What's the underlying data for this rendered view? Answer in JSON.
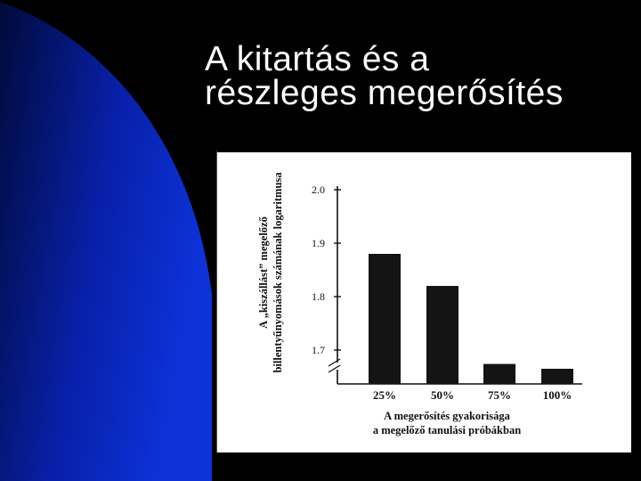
{
  "title": {
    "line1": "A kitartás és a",
    "line2": "részleges megerősítés"
  },
  "colors": {
    "background": "#000000",
    "accent_blue": "#0a28c8",
    "bar": "#141414"
  },
  "chart_data": {
    "type": "bar",
    "categories": [
      "25%",
      "50%",
      "75%",
      "100%"
    ],
    "values": [
      1.88,
      1.82,
      1.674,
      1.665
    ],
    "ylim": [
      1.65,
      2.0
    ],
    "yticks": [
      "2.0",
      "1.9",
      "1.8",
      "1.7"
    ],
    "ytick_values": [
      2.0,
      1.9,
      1.8,
      1.7
    ],
    "ylabel_line1": "A „kiszállást” megelőző",
    "ylabel_line2": "billentyűnyomások számának logaritmusa",
    "xlabel_line1": "A megerősítés gyakorisága",
    "xlabel_line2": "a megelőző tanulási próbákban",
    "axis_break": true,
    "grid": false
  }
}
